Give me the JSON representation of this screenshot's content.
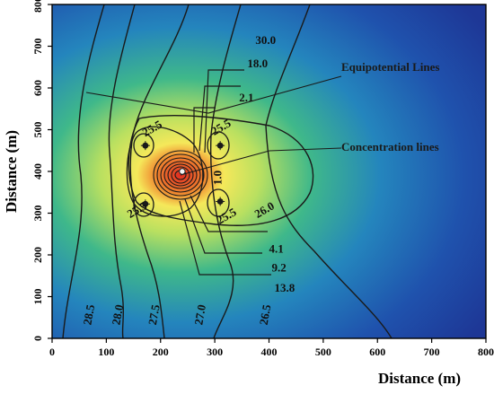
{
  "chart_data": {
    "type": "heatmap",
    "title": "",
    "xlabel": "Distance (m)",
    "ylabel": "Distance (m)",
    "xlim": [
      0,
      800
    ],
    "ylim": [
      0,
      800
    ],
    "x_ticks": [
      0,
      100,
      200,
      300,
      400,
      500,
      600,
      700,
      800
    ],
    "y_ticks": [
      0,
      100,
      200,
      300,
      400,
      500,
      600,
      700,
      800
    ],
    "source": {
      "x": 240,
      "y": 400
    },
    "wells": [
      {
        "x": 172,
        "y": 462
      },
      {
        "x": 172,
        "y": 322
      },
      {
        "x": 310,
        "y": 462
      },
      {
        "x": 310,
        "y": 328
      }
    ],
    "equipotential_labels": [
      {
        "text": "28.5",
        "x": 75,
        "y": 55
      },
      {
        "text": "28.0",
        "x": 128,
        "y": 55
      },
      {
        "text": "27.5",
        "x": 195,
        "y": 55
      },
      {
        "text": "27.0",
        "x": 280,
        "y": 55
      },
      {
        "text": "26.5",
        "x": 400,
        "y": 55
      },
      {
        "text": "25.5",
        "x": 188,
        "y": 495
      },
      {
        "text": "25.5",
        "x": 315,
        "y": 498
      },
      {
        "text": "25.5",
        "x": 160,
        "y": 300
      },
      {
        "text": "25.5",
        "x": 325,
        "y": 285
      },
      {
        "text": "26.0",
        "x": 395,
        "y": 300
      }
    ],
    "concentration_labels": [
      {
        "text": "30.0",
        "x": 375,
        "y": 705
      },
      {
        "text": "18.0",
        "x": 360,
        "y": 650
      },
      {
        "text": "2.1",
        "x": 345,
        "y": 568
      },
      {
        "text": "1.0",
        "x": 312,
        "y": 385
      },
      {
        "text": "4.1",
        "x": 400,
        "y": 205
      },
      {
        "text": "9.2",
        "x": 405,
        "y": 160
      },
      {
        "text": "13.8",
        "x": 410,
        "y": 112
      }
    ],
    "annotations": [
      "Equipotential Lines",
      "Concentration lines"
    ],
    "colorscale": [
      "#1c2896",
      "#1b55b8",
      "#2b9cc4",
      "#7fd36a",
      "#f0e35a",
      "#e8a23a",
      "#d8231f"
    ]
  }
}
